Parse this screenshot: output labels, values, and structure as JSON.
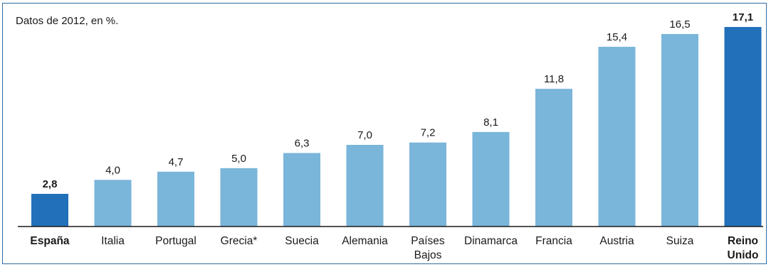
{
  "chart_data": {
    "type": "bar",
    "subtitle": "Datos de 2012, en %.",
    "categories": [
      [
        "España"
      ],
      [
        "Italia"
      ],
      [
        "Portugal"
      ],
      [
        "Grecia*"
      ],
      [
        "Suecia"
      ],
      [
        "Alemania"
      ],
      [
        "Países",
        "Bajos"
      ],
      [
        "Dinamarca"
      ],
      [
        "Francia"
      ],
      [
        "Austria"
      ],
      [
        "Suiza"
      ],
      [
        "Reino",
        "Unido"
      ]
    ],
    "values": [
      2.8,
      4.0,
      4.7,
      5.0,
      6.3,
      7.0,
      7.2,
      8.1,
      11.8,
      15.4,
      16.5,
      17.1
    ],
    "value_labels": [
      "2,8",
      "4,0",
      "4,7",
      "5,0",
      "6,3",
      "7,0",
      "7,2",
      "8,1",
      "11,8",
      "15,4",
      "16,5",
      "17,1"
    ],
    "highlighted": [
      true,
      false,
      false,
      false,
      false,
      false,
      false,
      false,
      false,
      false,
      false,
      true
    ],
    "ylim": [
      0,
      17.1
    ],
    "colors": {
      "bar": "#7ab5da",
      "highlight": "#2270ba",
      "axis": "#1a1a1a",
      "frame": "#2e6da4"
    },
    "grid": false,
    "legend": "none"
  }
}
